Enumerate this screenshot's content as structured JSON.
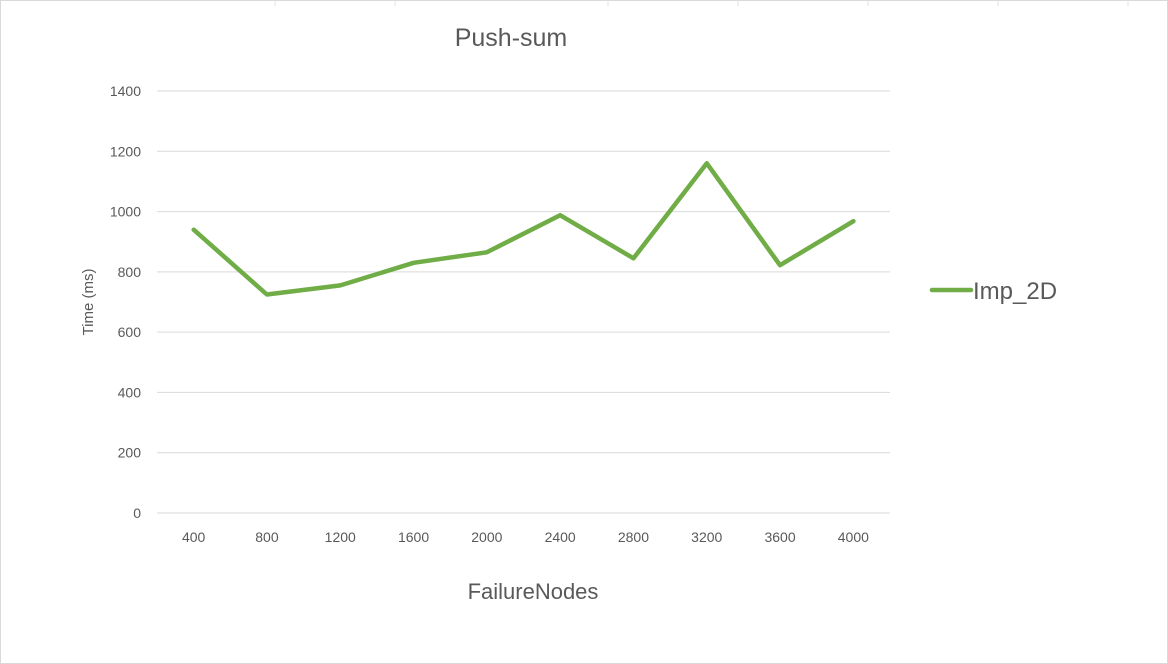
{
  "chart_data": {
    "type": "line",
    "title": "Push-sum",
    "xlabel": "FailureNodes",
    "ylabel": "Time (ms)",
    "categories": [
      "400",
      "800",
      "1200",
      "1600",
      "2000",
      "2400",
      "2800",
      "3200",
      "3600",
      "4000"
    ],
    "series": [
      {
        "name": "Imp_2D",
        "values": [
          940,
          725,
          755,
          830,
          865,
          988,
          845,
          1160,
          822,
          968
        ],
        "color": "#70ad47"
      }
    ],
    "ylim": [
      0,
      1400
    ],
    "yticks": [
      "0",
      "200",
      "400",
      "600",
      "800",
      "1000",
      "1200",
      "1400"
    ],
    "grid": true,
    "legend_position": "right"
  }
}
